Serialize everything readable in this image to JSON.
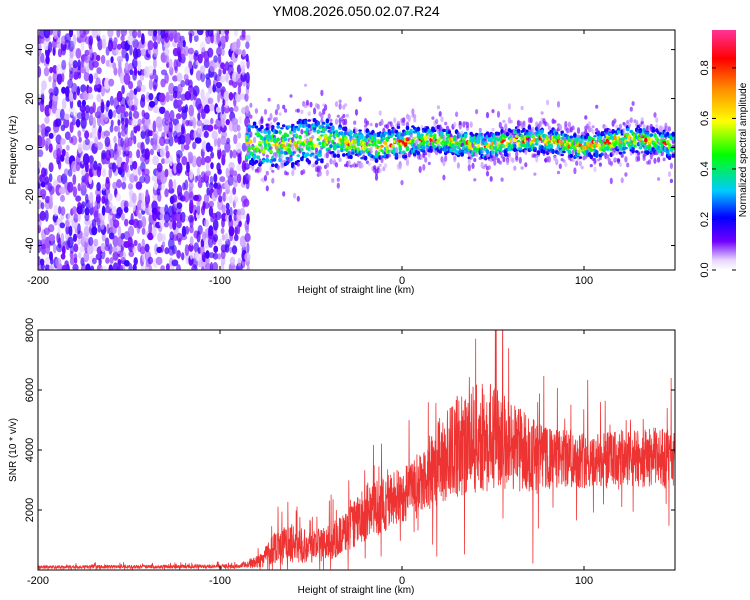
{
  "figure": {
    "title": "YM08.2026.050.02.07.R24"
  },
  "chart_data": [
    {
      "type": "heatmap",
      "name": "spectrogram",
      "title": "",
      "xlabel": "Height of straight line (km)",
      "ylabel": "Frequency (Hz)",
      "xlim": [
        -200,
        150
      ],
      "ylim": [
        -50,
        48
      ],
      "xticks": [
        -200,
        -100,
        0,
        100
      ],
      "yticks": [
        -40,
        -20,
        0,
        20,
        40
      ],
      "colorbar": {
        "label": "Normalized spectral amplitude",
        "range": [
          0.0,
          0.95
        ],
        "ticks": [
          0.0,
          0.2,
          0.4,
          0.6,
          0.8
        ],
        "tick_labels": [
          "0.0",
          "0.2",
          "0.4",
          "0.6",
          "0.8"
        ],
        "colormap": "rainbow (violet → blue → cyan → green → yellow → orange → red → magenta)"
      },
      "regions": [
        {
          "description": "broadband noise, amplitudes mostly 0.05–0.2 (purple/violet)",
          "x_range": [
            -200,
            -85
          ],
          "freq_range": [
            -50,
            48
          ],
          "amplitude": 0.12
        },
        {
          "description": "narrow signal band centered near 0 Hz, amplitudes up to ~0.9 (red peaks)",
          "x_range": [
            -85,
            150
          ],
          "freq_center": 2,
          "freq_halfwidth": 6,
          "peak_amplitude": 0.9
        }
      ]
    },
    {
      "type": "line",
      "name": "snr",
      "title": "",
      "xlabel": "Height of straight line (km)",
      "ylabel": "SNR (10 * v/v)",
      "color": "#ee3333",
      "xlim": [
        -200,
        150
      ],
      "ylim": [
        0,
        8000
      ],
      "xticks": [
        -200,
        -100,
        0,
        100
      ],
      "yticks": [
        2000,
        4000,
        6000,
        8000
      ],
      "envelope": {
        "x": [
          -200,
          -90,
          -78,
          -70,
          -60,
          -50,
          -40,
          -30,
          -20,
          -10,
          0,
          10,
          20,
          30,
          40,
          50,
          60,
          70,
          80,
          90,
          100,
          110,
          120,
          130,
          140,
          150
        ],
        "mean": [
          100,
          120,
          300,
          800,
          900,
          800,
          900,
          1300,
          1900,
          2200,
          2500,
          2900,
          3600,
          4100,
          4400,
          4400,
          4200,
          3900,
          3700,
          3700,
          3700,
          3600,
          3700,
          3700,
          3800,
          3700
        ],
        "spread": [
          90,
          100,
          350,
          900,
          1000,
          900,
          900,
          1100,
          1400,
          1500,
          1500,
          1600,
          2200,
          2600,
          2800,
          2800,
          2400,
          2000,
          1600,
          1500,
          1500,
          1500,
          1500,
          1500,
          1500,
          1500
        ]
      }
    }
  ]
}
